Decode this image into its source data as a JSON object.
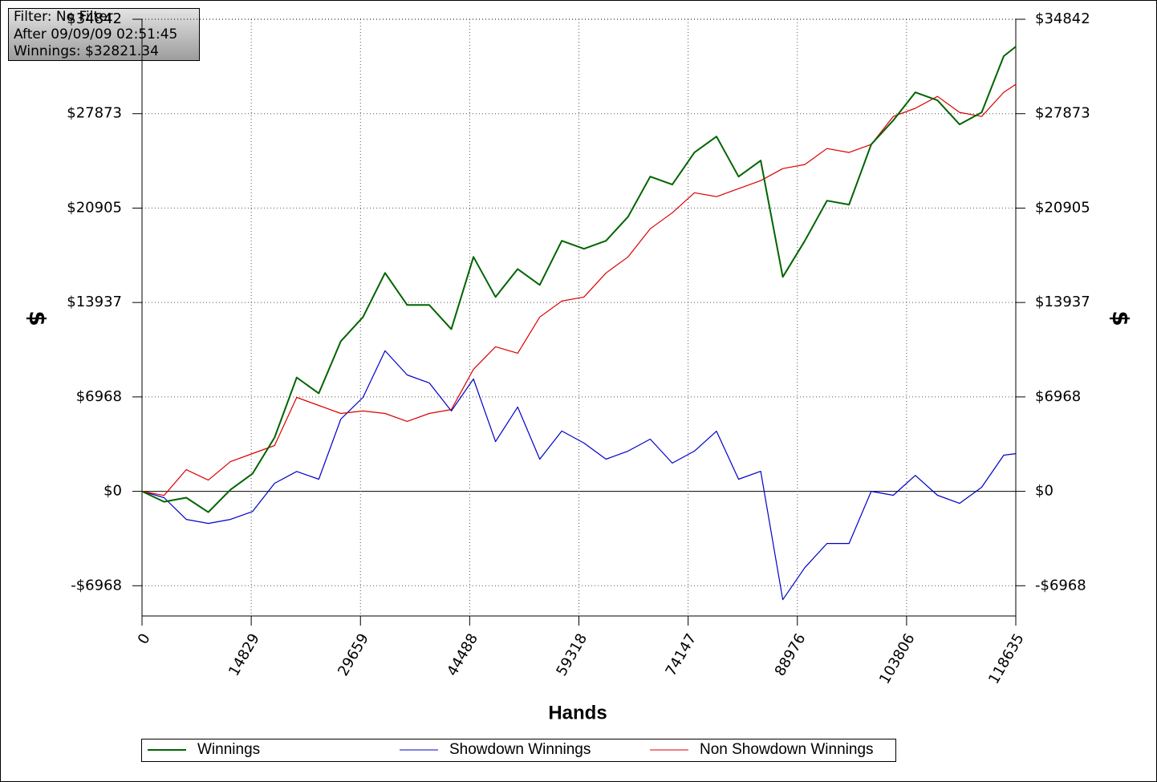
{
  "chart_data": {
    "type": "line",
    "annotations": [
      "Filter: No Filter",
      "After 09/09/09 02:51:45",
      "Winnings: $32821.34"
    ],
    "x_label": "Hands",
    "y_label": "$",
    "xlim": [
      0,
      118635
    ],
    "xticks": [
      0,
      14829,
      29659,
      44488,
      59318,
      74147,
      88976,
      103806,
      118635
    ],
    "ylim": [
      -9200,
      34842
    ],
    "yticks": [
      {
        "value": -6968,
        "label": "-$6968"
      },
      {
        "value": 0,
        "label": "$0"
      },
      {
        "value": 6968,
        "label": "$6968"
      },
      {
        "value": 13937,
        "label": "$13937"
      },
      {
        "value": 20905,
        "label": "$20905"
      },
      {
        "value": 27873,
        "label": "$27873"
      },
      {
        "value": 34842,
        "label": "$34842"
      }
    ],
    "grid": true,
    "x": [
      0,
      3000,
      6000,
      9000,
      12000,
      15000,
      18000,
      21000,
      24000,
      27000,
      30000,
      33000,
      36000,
      39000,
      42000,
      45000,
      48000,
      51000,
      54000,
      57000,
      60000,
      63000,
      66000,
      69000,
      72000,
      75000,
      78000,
      81000,
      84000,
      87000,
      90000,
      93000,
      96000,
      99000,
      102000,
      105000,
      108000,
      111000,
      114000,
      117000,
      118635
    ],
    "series": [
      {
        "name": "Winnings",
        "color": "#006400",
        "values": [
          0,
          -770,
          -470,
          -1540,
          120,
          1300,
          3970,
          8400,
          7230,
          11080,
          12860,
          16120,
          13750,
          13750,
          11970,
          17300,
          14340,
          16410,
          15230,
          18490,
          17900,
          18490,
          20270,
          23230,
          22640,
          25010,
          26190,
          23230,
          24410,
          15820,
          18490,
          21450,
          21160,
          25600,
          27380,
          29450,
          28860,
          27080,
          27970,
          32120,
          32821
        ]
      },
      {
        "name": "Showdown Winnings",
        "color": "#0000c8",
        "values": [
          0,
          -470,
          -2070,
          -2370,
          -2070,
          -1490,
          590,
          1470,
          890,
          5330,
          6930,
          10370,
          8590,
          8000,
          5930,
          8290,
          3670,
          6220,
          2370,
          4450,
          3560,
          2370,
          2970,
          3850,
          2080,
          2970,
          4440,
          890,
          1480,
          -8000,
          -5630,
          -3850,
          -3850,
          0,
          -290,
          1180,
          -290,
          -890,
          300,
          2670,
          2781
        ]
      },
      {
        "name": "Non Showdown Winnings",
        "color": "#dc0000",
        "values": [
          0,
          -300,
          1600,
          830,
          2190,
          2790,
          3380,
          6930,
          6340,
          5750,
          5930,
          5750,
          5160,
          5750,
          6040,
          9010,
          10670,
          10190,
          12860,
          14040,
          14340,
          16120,
          17300,
          19380,
          20560,
          22040,
          21750,
          22340,
          22930,
          23820,
          24120,
          25300,
          25010,
          25600,
          27670,
          28270,
          29150,
          27970,
          27670,
          29450,
          30040
        ]
      }
    ]
  }
}
